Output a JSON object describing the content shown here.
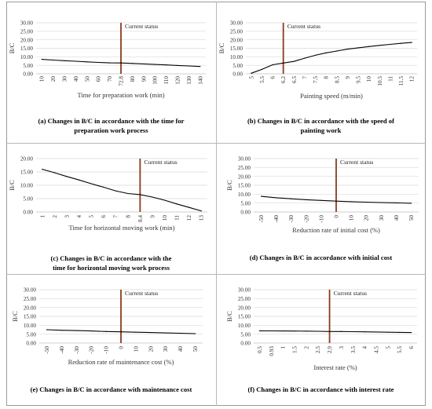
{
  "chart_data": [
    {
      "id": "a",
      "type": "line",
      "caption_line1": "(a) Changes in B/C in accordance with the time for",
      "caption_line2": "preparation work process",
      "xlabel": "Time for preparation work (min)",
      "ylabel": "B/C",
      "categories": [
        "10",
        "20",
        "30",
        "40",
        "50",
        "60",
        "70",
        "72.8",
        "80",
        "90",
        "100",
        "110",
        "120",
        "130",
        "140"
      ],
      "values": [
        8.5,
        8.1,
        7.7,
        7.4,
        7.0,
        6.7,
        6.4,
        6.35,
        6.1,
        5.8,
        5.5,
        5.2,
        4.9,
        4.6,
        4.3
      ],
      "yticks": [
        "0.00",
        "5.00",
        "10.00",
        "15.00",
        "20.00",
        "25.00",
        "30.00"
      ],
      "ylim": [
        0,
        30
      ],
      "current_index": 7,
      "current_label": "Current status",
      "colors": {
        "line": "#000000",
        "marker": "#8b3a1e",
        "grid": "#d9d9d9"
      }
    },
    {
      "id": "b",
      "type": "line",
      "caption_line1": "(b) Changes in B/C in accordance with the speed of",
      "caption_line2": "painting work",
      "xlabel": "Painting speed (m/min)",
      "ylabel": "B/C",
      "categories": [
        "5",
        "5.5",
        "6",
        "6.2",
        "6.5",
        "7",
        "7.5",
        "8",
        "8.5",
        "9",
        "9.5",
        "10",
        "10.5",
        "11",
        "11.5",
        "12"
      ],
      "values": [
        0.3,
        2.6,
        5.3,
        6.3,
        7.3,
        9.2,
        10.9,
        12.3,
        13.4,
        14.5,
        15.3,
        16.0,
        16.7,
        17.3,
        17.9,
        18.4
      ],
      "yticks": [
        "0.00",
        "5.00",
        "10.00",
        "15.00",
        "20.00",
        "25.00",
        "30.00"
      ],
      "ylim": [
        0,
        30
      ],
      "current_index": 3,
      "current_label": "Current status",
      "colors": {
        "line": "#000000",
        "marker": "#8b3a1e",
        "grid": "#d9d9d9"
      }
    },
    {
      "id": "c",
      "type": "line",
      "caption_line1": "(c) Changes in B/C in accordance with the",
      "caption_line2": "time for horizontal moving work process",
      "xlabel": "Time for horizontal moving work (min)",
      "ylabel": "B/C",
      "categories": [
        "1",
        "2",
        "3",
        "4",
        "5",
        "6",
        "7",
        "8",
        "8.4",
        "9",
        "10",
        "11",
        "12",
        "13"
      ],
      "values": [
        16.0,
        14.7,
        13.3,
        12.0,
        10.6,
        9.3,
        7.9,
        6.9,
        6.5,
        5.6,
        4.4,
        3.0,
        1.7,
        0.4
      ],
      "yticks": [
        "0.00",
        "5.00",
        "10.00",
        "15.00",
        "20.00"
      ],
      "ylim": [
        0,
        20
      ],
      "current_index": 8,
      "current_label": "Current status",
      "colors": {
        "line": "#000000",
        "marker": "#8b3a1e",
        "grid": "#d9d9d9"
      }
    },
    {
      "id": "d",
      "type": "line",
      "caption_line1": "(d) Changes in B/C in accordance with initial cost",
      "caption_line2": "",
      "xlabel": "Reduction rate of initial cost (%)",
      "ylabel": "B/C",
      "categories": [
        "-50",
        "-40",
        "-30",
        "-20",
        "-10",
        "0",
        "10",
        "20",
        "30",
        "40",
        "50"
      ],
      "values": [
        8.8,
        8.0,
        7.4,
        6.9,
        6.5,
        6.1,
        5.8,
        5.5,
        5.3,
        5.1,
        4.9
      ],
      "yticks": [
        "0.00",
        "5.00",
        "10.00",
        "15.00",
        "20.00",
        "25.00",
        "30.00"
      ],
      "ylim": [
        0,
        30
      ],
      "current_index": 5,
      "current_label": "Current status",
      "colors": {
        "line": "#000000",
        "marker": "#8b3a1e",
        "grid": "#d9d9d9"
      }
    },
    {
      "id": "e",
      "type": "line",
      "caption_line1": "(e) Changes in B/C in accordance with maintenance cost",
      "caption_line2": "",
      "xlabel": "Reduction rate of maintenance cost (%)",
      "ylabel": "B/C",
      "categories": [
        "-50",
        "-40",
        "-30",
        "-20",
        "-10",
        "0",
        "10",
        "20",
        "30",
        "40",
        "50"
      ],
      "values": [
        7.5,
        7.2,
        7.0,
        6.8,
        6.5,
        6.3,
        6.1,
        5.9,
        5.7,
        5.5,
        5.3
      ],
      "yticks": [
        "0.00",
        "5.00",
        "10.00",
        "15.00",
        "20.00",
        "25.00",
        "30.00"
      ],
      "ylim": [
        0,
        30
      ],
      "current_index": 5,
      "current_label": "Current status",
      "colors": {
        "line": "#000000",
        "marker": "#8b3a1e",
        "grid": "#d9d9d9"
      }
    },
    {
      "id": "f",
      "type": "line",
      "caption_line1": "(f) Changes in B/C in accordance with interest rate",
      "caption_line2": "",
      "xlabel": "Interest rate (%)",
      "ylabel": "B/C",
      "categories": [
        "0.5",
        "0.93",
        "1",
        "1.5",
        "2",
        "2.5",
        "2.9",
        "3",
        "3.5",
        "4",
        "4.5",
        "5",
        "5.5",
        "6"
      ],
      "values": [
        6.9,
        6.85,
        6.8,
        6.75,
        6.7,
        6.6,
        6.5,
        6.5,
        6.4,
        6.3,
        6.2,
        6.1,
        6.0,
        5.9
      ],
      "yticks": [
        "0.00",
        "5.00",
        "10.00",
        "15.00",
        "20.00",
        "25.00",
        "30.00"
      ],
      "ylim": [
        0,
        30
      ],
      "current_index": 6,
      "current_label": "Current status",
      "colors": {
        "line": "#000000",
        "marker": "#8b3a1e",
        "grid": "#d9d9d9"
      }
    }
  ]
}
